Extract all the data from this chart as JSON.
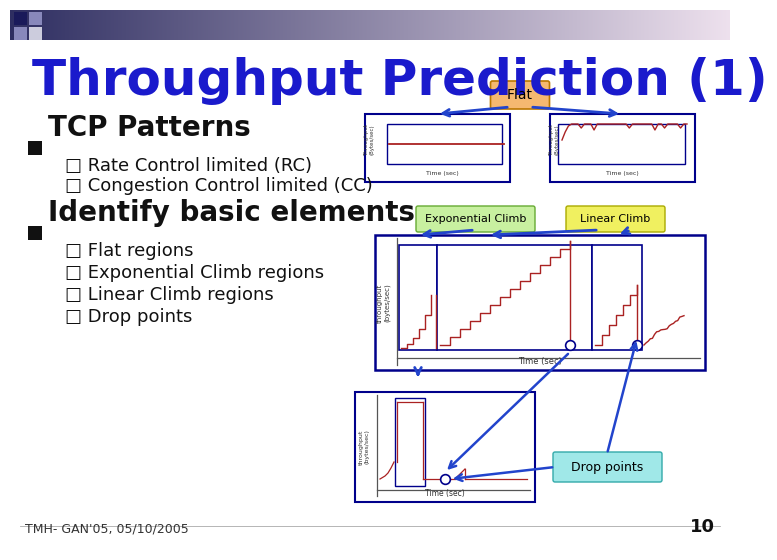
{
  "background_color": "#ffffff",
  "title_text": "Throughput Prediction (1)",
  "title_color": "#1a1acc",
  "title_fontsize": 36,
  "bullet1_text": "TCP Patterns",
  "sub1a_text": "□ Rate Control limited (RC)",
  "sub1b_text": "□ Congestion Control limited (CC)",
  "bullet2_text": "Identify basic elements",
  "sub2a_text": "□ Flat regions",
  "sub2b_text": "□ Exponential Climb regions",
  "sub2c_text": "□ Linear Climb regions",
  "sub2d_text": "□ Drop points",
  "footer_text": "TMH- GAN'05, 05/10/2005",
  "page_num": "10",
  "arrow_color": "#2244cc",
  "flat_label_bg": "#f5b870",
  "exp_climb_bg": "#c8f0a0",
  "lin_climb_bg": "#f0f060",
  "drop_pts_bg": "#a0e8e8",
  "chart_border": "#00008B",
  "red_line": "#aa2222",
  "axis_color": "#555555"
}
